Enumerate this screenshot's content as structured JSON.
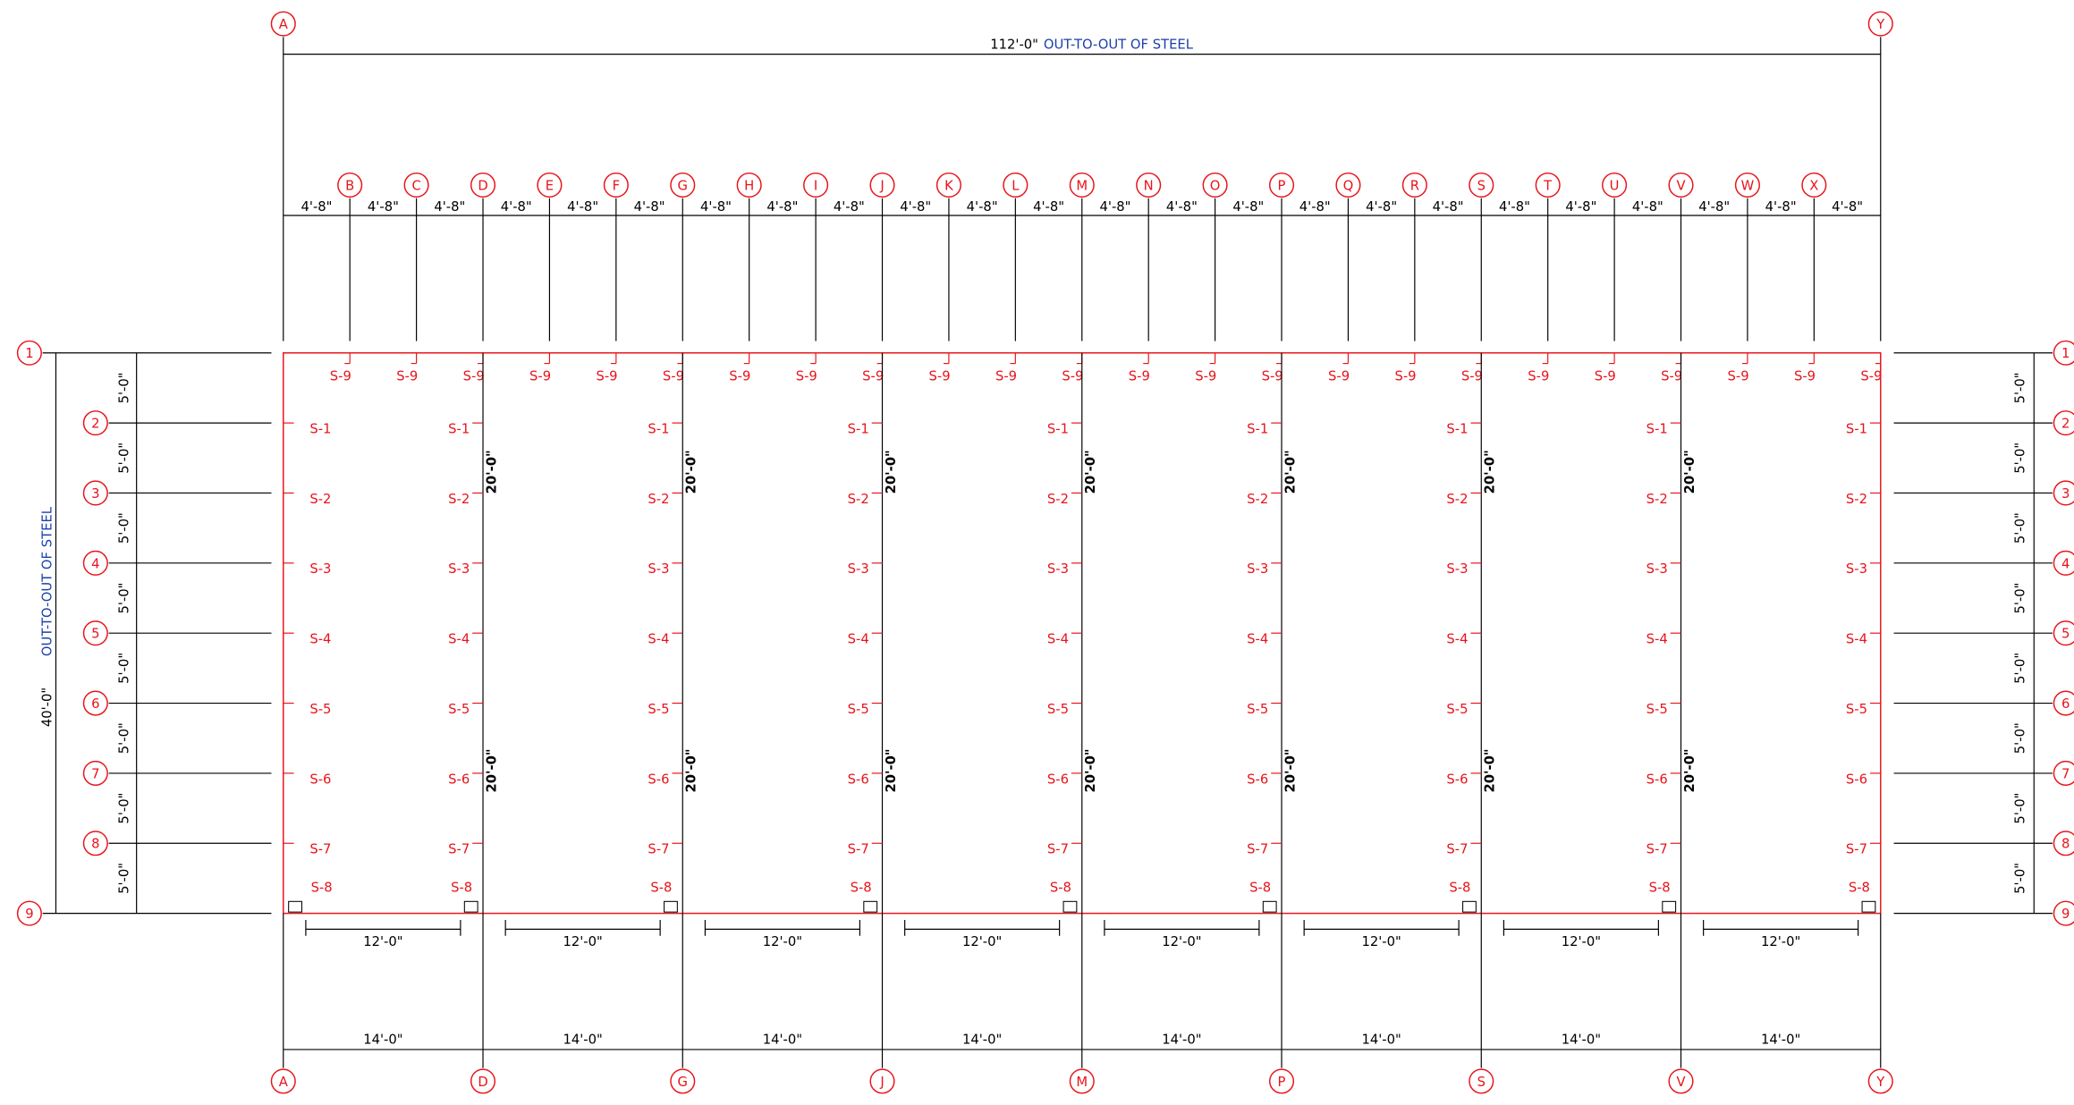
{
  "overall_width": {
    "dimension": "112'-0\"",
    "note": "OUT-TO-OUT OF STEEL"
  },
  "overall_depth": {
    "dimension": "40'-0\"",
    "note": "OUT-TO-OUT OF STEEL"
  },
  "grid_columns": [
    "A",
    "B",
    "C",
    "D",
    "E",
    "F",
    "G",
    "H",
    "I",
    "J",
    "K",
    "L",
    "M",
    "N",
    "O",
    "P",
    "Q",
    "R",
    "S",
    "T",
    "U",
    "V",
    "W",
    "X",
    "Y"
  ],
  "column_spacing_dims": [
    "4'-8\"",
    "4'-8\"",
    "4'-8\"",
    "4'-8\"",
    "4'-8\"",
    "4'-8\"",
    "4'-8\"",
    "4'-8\"",
    "4'-8\"",
    "4'-8\"",
    "4'-8\"",
    "4'-8\"",
    "4'-8\"",
    "4'-8\"",
    "4'-8\"",
    "4'-8\"",
    "4'-8\"",
    "4'-8\"",
    "4'-8\"",
    "4'-8\"",
    "4'-8\"",
    "4'-8\"",
    "4'-8\"",
    "4'-8\""
  ],
  "roof_labels": [
    "S-9",
    "S-9",
    "S-9",
    "S-9",
    "S-9",
    "S-9",
    "S-9",
    "S-9",
    "S-9",
    "S-9",
    "S-9",
    "S-9",
    "S-9",
    "S-9",
    "S-9",
    "S-9",
    "S-9",
    "S-9",
    "S-9",
    "S-9",
    "S-9",
    "S-9",
    "S-9",
    "S-9"
  ],
  "rows_left": [
    "1",
    "2",
    "3",
    "4",
    "5",
    "6",
    "7",
    "8",
    "9"
  ],
  "rows_right": [
    "1",
    "2",
    "3",
    "4",
    "5",
    "6",
    "7",
    "8",
    "9"
  ],
  "row_dims_left": [
    "5'-0\"",
    "5'-0\"",
    "5'-0\"",
    "5'-0\"",
    "5'-0\"",
    "5'-0\"",
    "5'-0\"",
    "5'-0\""
  ],
  "row_dims_right": [
    "5'-0\"",
    "5'-0\"",
    "5'-0\"",
    "5'-0\"",
    "5'-0\"",
    "5'-0\"",
    "5'-0\"",
    "5'-0\""
  ],
  "frames": [
    {
      "labels": [
        "S-1",
        "S-2",
        "S-3",
        "S-4",
        "S-5",
        "S-6",
        "S-7",
        "S-8"
      ]
    },
    {
      "labels": [
        "S-1",
        "S-2",
        "S-3",
        "S-4",
        "S-5",
        "S-6",
        "S-7",
        "S-8"
      ],
      "dims": [
        "20'-0\"",
        "20'-0\""
      ]
    },
    {
      "labels": [
        "S-1",
        "S-2",
        "S-3",
        "S-4",
        "S-5",
        "S-6",
        "S-7",
        "S-8"
      ],
      "dims": [
        "20'-0\"",
        "20'-0\""
      ]
    },
    {
      "labels": [
        "S-1",
        "S-2",
        "S-3",
        "S-4",
        "S-5",
        "S-6",
        "S-7",
        "S-8"
      ],
      "dims": [
        "20'-0\"",
        "20'-0\""
      ]
    },
    {
      "labels": [
        "S-1",
        "S-2",
        "S-3",
        "S-4",
        "S-5",
        "S-6",
        "S-7",
        "S-8"
      ],
      "dims": [
        "20'-0\"",
        "20'-0\""
      ]
    },
    {
      "labels": [
        "S-1",
        "S-2",
        "S-3",
        "S-4",
        "S-5",
        "S-6",
        "S-7",
        "S-8"
      ],
      "dims": [
        "20'-0\"",
        "20'-0\""
      ]
    },
    {
      "labels": [
        "S-1",
        "S-2",
        "S-3",
        "S-4",
        "S-5",
        "S-6",
        "S-7",
        "S-8"
      ],
      "dims": [
        "20'-0\"",
        "20'-0\""
      ]
    },
    {
      "labels": [
        "S-1",
        "S-2",
        "S-3",
        "S-4",
        "S-5",
        "S-6",
        "S-7",
        "S-8"
      ],
      "dims": [
        "20'-0\"",
        "20'-0\""
      ]
    },
    {
      "labels": [
        "S-1",
        "S-2",
        "S-3",
        "S-4",
        "S-5",
        "S-6",
        "S-7",
        "S-8"
      ]
    }
  ],
  "clear_dims": [
    "12'-0\"",
    "12'-0\"",
    "12'-0\"",
    "12'-0\"",
    "12'-0\"",
    "12'-0\"",
    "12'-0\"",
    "12'-0\""
  ],
  "bay_dims": [
    "14'-0\"",
    "14'-0\"",
    "14'-0\"",
    "14'-0\"",
    "14'-0\"",
    "14'-0\"",
    "14'-0\"",
    "14'-0\""
  ],
  "bottom_grid": [
    "A",
    "D",
    "G",
    "J",
    "M",
    "P",
    "S",
    "V",
    "Y"
  ]
}
